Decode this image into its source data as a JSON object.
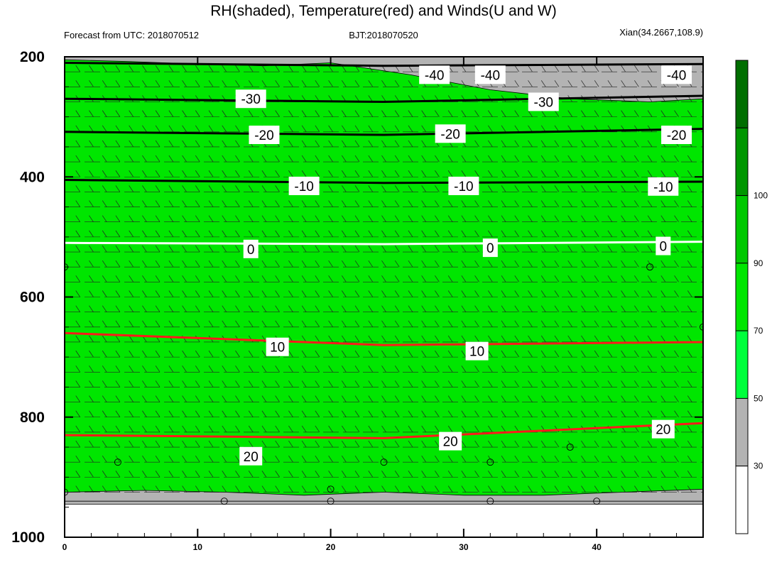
{
  "chart_data": {
    "type": "heatmap",
    "title": "RH(shaded), Temperature(red) and Winds(U and W)",
    "left_info": "Forecast from UTC: 2018070512",
    "center_info": "BJT:2018070520",
    "right_info": "Xian(34.2667,108.9)",
    "xlim": [
      0,
      48
    ],
    "ylim": [
      200,
      1000
    ],
    "x_ticks": [
      0,
      10,
      20,
      30,
      40
    ],
    "x_tick_labels": [
      "0",
      "10",
      "20",
      "30",
      "40"
    ],
    "y_ticks": [
      200,
      400,
      600,
      800,
      1000
    ],
    "y_tick_labels": [
      "200",
      "400",
      "600",
      "800",
      "1000"
    ],
    "colorbar": {
      "levels": [
        30,
        50,
        70,
        90,
        100
      ],
      "labels": [
        "30",
        "50",
        "70",
        "90",
        "100"
      ],
      "colors": [
        "#ffffff",
        "#b3b3b3",
        "#00ff3c",
        "#00e600",
        "#00c800",
        "#009600",
        "#006e00"
      ]
    },
    "rh_field": {
      "grey_lt50": [
        {
          "x": [
            0,
            48,
            48,
            0
          ],
          "y": [
            200,
            200,
            940,
            940
          ]
        }
      ],
      "green_50_70": [
        {
          "x": [
            0,
            5,
            10,
            15,
            20,
            26,
            32,
            38,
            44,
            48,
            48,
            42,
            36,
            30,
            24,
            18,
            12,
            6,
            0
          ],
          "y": [
            205,
            208,
            212,
            215,
            210,
            230,
            255,
            270,
            275,
            270,
            920,
            925,
            930,
            930,
            925,
            930,
            925,
            922,
            925
          ]
        }
      ],
      "white_lt30": [
        {
          "x": [
            0,
            48,
            48,
            0
          ],
          "y": [
            945,
            945,
            1000,
            1000
          ]
        }
      ]
    },
    "temperature": {
      "neg": [
        {
          "level": -40,
          "x": [
            0,
            24,
            48
          ],
          "y": [
            210,
            215,
            212
          ]
        },
        {
          "level": -30,
          "x": [
            0,
            24,
            48
          ],
          "y": [
            270,
            275,
            265
          ]
        },
        {
          "level": -20,
          "x": [
            0,
            24,
            48
          ],
          "y": [
            325,
            330,
            320
          ]
        },
        {
          "level": -10,
          "x": [
            0,
            24,
            48
          ],
          "y": [
            405,
            410,
            408
          ]
        }
      ],
      "zero": {
        "level": 0,
        "x": [
          0,
          24,
          48
        ],
        "y": [
          510,
          512,
          508
        ]
      },
      "pos": [
        {
          "level": 10,
          "x": [
            0,
            24,
            48
          ],
          "y": [
            660,
            680,
            675
          ]
        },
        {
          "level": 20,
          "x": [
            0,
            24,
            48
          ],
          "y": [
            830,
            835,
            810
          ]
        }
      ]
    },
    "contour_labels": [
      {
        "text": "-40",
        "x": 27.8,
        "y": 230
      },
      {
        "text": "-40",
        "x": 32.0,
        "y": 230
      },
      {
        "text": "-40",
        "x": 46.0,
        "y": 230
      },
      {
        "text": "-30",
        "x": 14.0,
        "y": 270
      },
      {
        "text": "-30",
        "x": 36.0,
        "y": 275
      },
      {
        "text": "-20",
        "x": 15.0,
        "y": 330
      },
      {
        "text": "-20",
        "x": 29.0,
        "y": 328
      },
      {
        "text": "-20",
        "x": 46.0,
        "y": 330
      },
      {
        "text": "-10",
        "x": 18.0,
        "y": 415
      },
      {
        "text": "-10",
        "x": 30.0,
        "y": 415
      },
      {
        "text": "-10",
        "x": 45.0,
        "y": 416
      },
      {
        "text": "0",
        "x": 14.0,
        "y": 520
      },
      {
        "text": "0",
        "x": 32.0,
        "y": 518
      },
      {
        "text": "0",
        "x": 45.0,
        "y": 515
      },
      {
        "text": "10",
        "x": 16.0,
        "y": 683
      },
      {
        "text": "10",
        "x": 31.0,
        "y": 690
      },
      {
        "text": "20",
        "x": 14.0,
        "y": 865
      },
      {
        "text": "20",
        "x": 29.0,
        "y": 840
      },
      {
        "text": "20",
        "x": 45.0,
        "y": 820
      }
    ],
    "wind_rows_hpa": [
      225,
      250,
      275,
      300,
      325,
      350,
      375,
      400,
      425,
      450,
      475,
      500,
      525,
      550,
      575,
      600,
      625,
      650,
      675,
      700,
      725,
      750,
      775,
      800,
      825,
      850,
      875,
      900,
      925
    ],
    "calm_circles": [
      {
        "x": 0,
        "y": 550
      },
      {
        "x": 0,
        "y": 925
      },
      {
        "x": 4,
        "y": 875
      },
      {
        "x": 12,
        "y": 940
      },
      {
        "x": 20,
        "y": 940
      },
      {
        "x": 20,
        "y": 920
      },
      {
        "x": 24,
        "y": 875
      },
      {
        "x": 32,
        "y": 875
      },
      {
        "x": 32,
        "y": 940
      },
      {
        "x": 38,
        "y": 850
      },
      {
        "x": 40,
        "y": 940
      },
      {
        "x": 44,
        "y": 550
      },
      {
        "x": 48,
        "y": 650
      }
    ]
  }
}
